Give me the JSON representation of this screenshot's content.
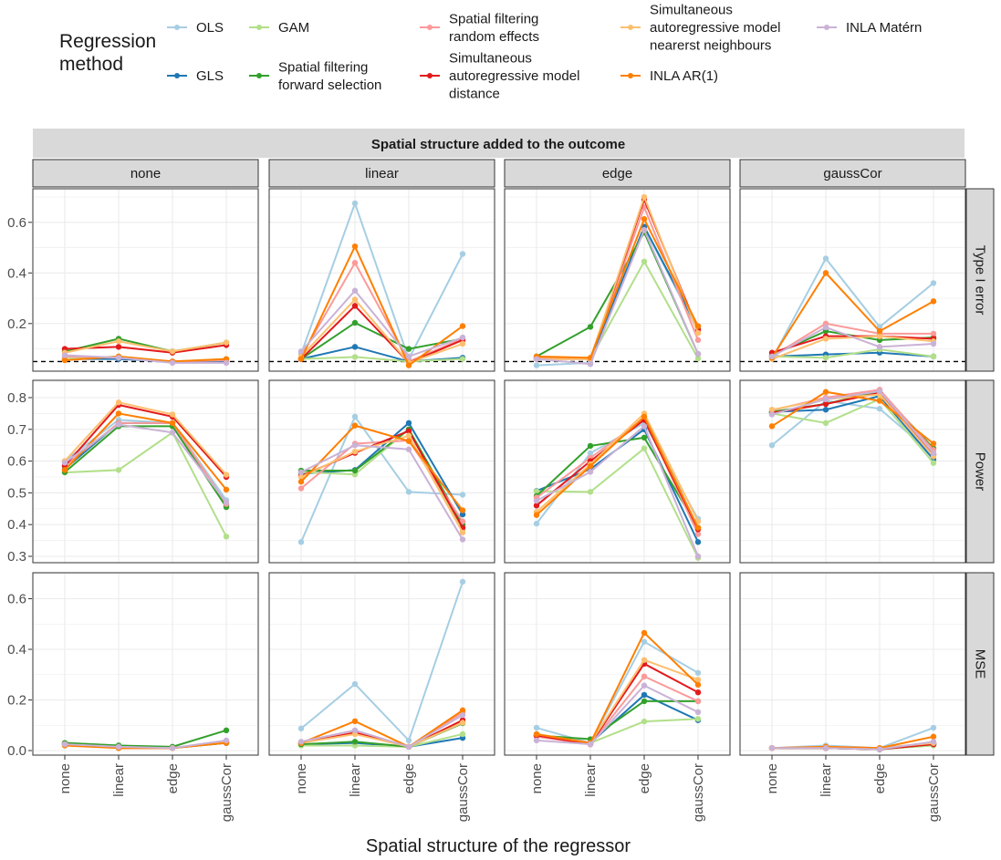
{
  "chart_data": {
    "type": "line",
    "title": "Spatial structure added to the outcome",
    "xlabel": "Spatial structure of the regressor",
    "categories": [
      "none",
      "linear",
      "edge",
      "gaussCor"
    ],
    "facet_columns": [
      "none",
      "linear",
      "edge",
      "gaussCor"
    ],
    "facet_rows": [
      {
        "name": "Type I error",
        "ylim": [
          0.012,
          0.733
        ],
        "yticks": [
          "0.2",
          "0.4",
          "0.6"
        ],
        "ytick_values": [
          0.2,
          0.4,
          0.6
        ],
        "reference_line": 0.05
      },
      {
        "name": "Power",
        "ylim": [
          0.27,
          0.855
        ],
        "yticks": [
          "0.3",
          "0.4",
          "0.5",
          "0.6",
          "0.7",
          "0.8"
        ],
        "ytick_values": [
          0.3,
          0.4,
          0.5,
          0.6,
          0.7,
          0.8
        ]
      },
      {
        "name": "MSE",
        "ylim": [
          -0.025,
          0.695
        ],
        "yticks": [
          "0.0",
          "0.2",
          "0.4",
          "0.6"
        ],
        "ytick_values": [
          0.0,
          0.2,
          0.4,
          0.6
        ]
      }
    ],
    "legend": {
      "title": "Regression method",
      "position": "top",
      "entries": [
        {
          "name": "OLS",
          "lines": [
            "OLS"
          ],
          "color": "#a6cee3"
        },
        {
          "name": "GLS",
          "lines": [
            "GLS"
          ],
          "color": "#1f78b4"
        },
        {
          "name": "GAM",
          "lines": [
            "GAM"
          ],
          "color": "#b2df8a"
        },
        {
          "name": "Spatial filtering forward selection",
          "lines": [
            "Spatial filtering",
            "forward selection"
          ],
          "color": "#33a02c"
        },
        {
          "name": "Spatial filtering random effects",
          "lines": [
            "Spatial filtering",
            "random effects"
          ],
          "color": "#fb9a99"
        },
        {
          "name": "Simultaneous autoregressive model distance",
          "lines": [
            "Simultaneous",
            "autoregressive model",
            "distance"
          ],
          "color": "#e31a1c"
        },
        {
          "name": "Simultaneous autoregressive model nearerst neighbours",
          "lines": [
            "Simultaneous",
            "autoregressive model",
            "nearerst neighbours"
          ],
          "color": "#fdbf6f"
        },
        {
          "name": "INLA AR(1)",
          "lines": [
            "INLA AR(1)"
          ],
          "color": "#ff7f00"
        },
        {
          "name": "INLA Matérn",
          "lines": [
            "INLA Matérn"
          ],
          "color": "#cab2d6"
        }
      ]
    },
    "panels": [
      {
        "row": 0,
        "col": 0,
        "values": [
          [
            0.07,
            0.06,
            0.05,
            0.05
          ],
          [
            0.06,
            0.06,
            0.05,
            0.05
          ],
          [
            0.06,
            0.07,
            0.05,
            0.06
          ],
          [
            0.09,
            0.14,
            0.09,
            0.125
          ],
          [
            0.07,
            0.065,
            0.05,
            0.055
          ],
          [
            0.1,
            0.108,
            0.085,
            0.115
          ],
          [
            0.085,
            0.13,
            0.09,
            0.125
          ],
          [
            0.055,
            0.07,
            0.05,
            0.06
          ],
          [
            0.075,
            0.065,
            0.045,
            0.045
          ]
        ]
      },
      {
        "row": 0,
        "col": 1,
        "values": [
          [
            0.08,
            0.675,
            0.06,
            0.475
          ],
          [
            0.06,
            0.108,
            0.05,
            0.065
          ],
          [
            0.06,
            0.068,
            0.05,
            0.06
          ],
          [
            0.06,
            0.203,
            0.1,
            0.14
          ],
          [
            0.07,
            0.44,
            0.05,
            0.14
          ],
          [
            0.06,
            0.27,
            0.045,
            0.135
          ],
          [
            0.07,
            0.295,
            0.045,
            0.12
          ],
          [
            0.06,
            0.505,
            0.035,
            0.19
          ],
          [
            0.09,
            0.33,
            0.07,
            0.145
          ]
        ]
      },
      {
        "row": 0,
        "col": 2,
        "values": [
          [
            0.035,
            0.045,
            0.58,
            0.17
          ],
          [
            0.065,
            0.06,
            0.583,
            0.18
          ],
          [
            0.06,
            0.06,
            0.445,
            0.062
          ],
          [
            0.07,
            0.187,
            0.56,
            0.08
          ],
          [
            0.065,
            0.06,
            0.66,
            0.135
          ],
          [
            0.06,
            0.06,
            0.69,
            0.175
          ],
          [
            0.06,
            0.06,
            0.7,
            0.163
          ],
          [
            0.07,
            0.065,
            0.613,
            0.19
          ],
          [
            0.06,
            0.04,
            0.57,
            0.08
          ]
        ]
      },
      {
        "row": 0,
        "col": 3,
        "values": [
          [
            0.06,
            0.457,
            0.187,
            0.36
          ],
          [
            0.07,
            0.078,
            0.085,
            0.07
          ],
          [
            0.07,
            0.065,
            0.098,
            0.07
          ],
          [
            0.075,
            0.17,
            0.135,
            0.145
          ],
          [
            0.07,
            0.2,
            0.16,
            0.16
          ],
          [
            0.085,
            0.15,
            0.15,
            0.14
          ],
          [
            0.06,
            0.14,
            0.15,
            0.13
          ],
          [
            0.065,
            0.4,
            0.17,
            0.288
          ],
          [
            0.07,
            0.185,
            0.108,
            0.12
          ]
        ]
      },
      {
        "row": 1,
        "col": 0,
        "values": [
          [
            0.6,
            0.73,
            0.72,
            0.477
          ],
          [
            0.575,
            0.72,
            0.72,
            0.46
          ],
          [
            0.564,
            0.572,
            0.69,
            0.362
          ],
          [
            0.565,
            0.71,
            0.71,
            0.455
          ],
          [
            0.585,
            0.72,
            0.72,
            0.465
          ],
          [
            0.585,
            0.777,
            0.74,
            0.55
          ],
          [
            0.6,
            0.785,
            0.747,
            0.557
          ],
          [
            0.572,
            0.75,
            0.72,
            0.51
          ],
          [
            0.595,
            0.715,
            0.69,
            0.47
          ]
        ]
      },
      {
        "row": 1,
        "col": 1,
        "values": [
          [
            0.345,
            0.74,
            0.503,
            0.494
          ],
          [
            0.56,
            0.572,
            0.72,
            0.432
          ],
          [
            0.565,
            0.558,
            0.7,
            0.38
          ],
          [
            0.57,
            0.57,
            0.7,
            0.4
          ],
          [
            0.514,
            0.655,
            0.665,
            0.41
          ],
          [
            0.553,
            0.626,
            0.695,
            0.39
          ],
          [
            0.55,
            0.63,
            0.68,
            0.375
          ],
          [
            0.535,
            0.712,
            0.663,
            0.445
          ],
          [
            0.565,
            0.65,
            0.637,
            0.353
          ]
        ]
      },
      {
        "row": 1,
        "col": 2,
        "values": [
          [
            0.403,
            0.625,
            0.72,
            0.418
          ],
          [
            0.506,
            0.575,
            0.7,
            0.345
          ],
          [
            0.505,
            0.503,
            0.64,
            0.295
          ],
          [
            0.49,
            0.648,
            0.674,
            0.39
          ],
          [
            0.485,
            0.61,
            0.735,
            0.37
          ],
          [
            0.46,
            0.6,
            0.73,
            0.385
          ],
          [
            0.44,
            0.59,
            0.75,
            0.41
          ],
          [
            0.43,
            0.584,
            0.74,
            0.39
          ],
          [
            0.475,
            0.566,
            0.71,
            0.3
          ]
        ]
      },
      {
        "row": 1,
        "col": 3,
        "values": [
          [
            0.65,
            0.79,
            0.765,
            0.62
          ],
          [
            0.755,
            0.762,
            0.805,
            0.605
          ],
          [
            0.75,
            0.72,
            0.795,
            0.594
          ],
          [
            0.755,
            0.78,
            0.82,
            0.64
          ],
          [
            0.76,
            0.8,
            0.825,
            0.635
          ],
          [
            0.752,
            0.78,
            0.815,
            0.62
          ],
          [
            0.762,
            0.795,
            0.81,
            0.615
          ],
          [
            0.71,
            0.818,
            0.79,
            0.655
          ],
          [
            0.747,
            0.795,
            0.82,
            0.625
          ]
        ]
      },
      {
        "row": 2,
        "col": 0,
        "values": [
          [
            0.03,
            0.02,
            0.01,
            0.035
          ],
          [
            0.025,
            0.015,
            0.01,
            0.03
          ],
          [
            0.03,
            0.02,
            0.01,
            0.035
          ],
          [
            0.03,
            0.02,
            0.015,
            0.08
          ],
          [
            0.025,
            0.01,
            0.01,
            0.035
          ],
          [
            0.025,
            0.01,
            0.01,
            0.035
          ],
          [
            0.025,
            0.01,
            0.01,
            0.035
          ],
          [
            0.02,
            0.01,
            0.01,
            0.03
          ],
          [
            0.025,
            0.015,
            0.01,
            0.04
          ]
        ]
      },
      {
        "row": 2,
        "col": 1,
        "values": [
          [
            0.087,
            0.263,
            0.04,
            0.667
          ],
          [
            0.025,
            0.03,
            0.015,
            0.05
          ],
          [
            0.02,
            0.02,
            0.015,
            0.065
          ],
          [
            0.025,
            0.035,
            0.015,
            0.108
          ],
          [
            0.03,
            0.075,
            0.015,
            0.15
          ],
          [
            0.03,
            0.07,
            0.015,
            0.12
          ],
          [
            0.03,
            0.065,
            0.015,
            0.11
          ],
          [
            0.03,
            0.116,
            0.015,
            0.159
          ],
          [
            0.035,
            0.08,
            0.015,
            0.14
          ]
        ]
      },
      {
        "row": 2,
        "col": 2,
        "values": [
          [
            0.09,
            0.03,
            0.43,
            0.307
          ],
          [
            0.06,
            0.03,
            0.22,
            0.12
          ],
          [
            0.055,
            0.03,
            0.115,
            0.125
          ],
          [
            0.06,
            0.045,
            0.195,
            0.195
          ],
          [
            0.055,
            0.025,
            0.293,
            0.195
          ],
          [
            0.06,
            0.025,
            0.343,
            0.23
          ],
          [
            0.065,
            0.03,
            0.358,
            0.28
          ],
          [
            0.065,
            0.03,
            0.465,
            0.26
          ],
          [
            0.04,
            0.025,
            0.257,
            0.152
          ]
        ]
      },
      {
        "row": 2,
        "col": 3,
        "values": [
          [
            0.01,
            0.02,
            0.01,
            0.09
          ],
          [
            0.01,
            0.01,
            0.005,
            0.025
          ],
          [
            0.01,
            0.01,
            0.005,
            0.02
          ],
          [
            0.01,
            0.01,
            0.005,
            0.025
          ],
          [
            0.01,
            0.015,
            0.01,
            0.03
          ],
          [
            0.01,
            0.01,
            0.005,
            0.025
          ],
          [
            0.01,
            0.015,
            0.01,
            0.03
          ],
          [
            0.01,
            0.015,
            0.01,
            0.055
          ],
          [
            0.01,
            0.01,
            0.005,
            0.035
          ]
        ]
      }
    ]
  }
}
